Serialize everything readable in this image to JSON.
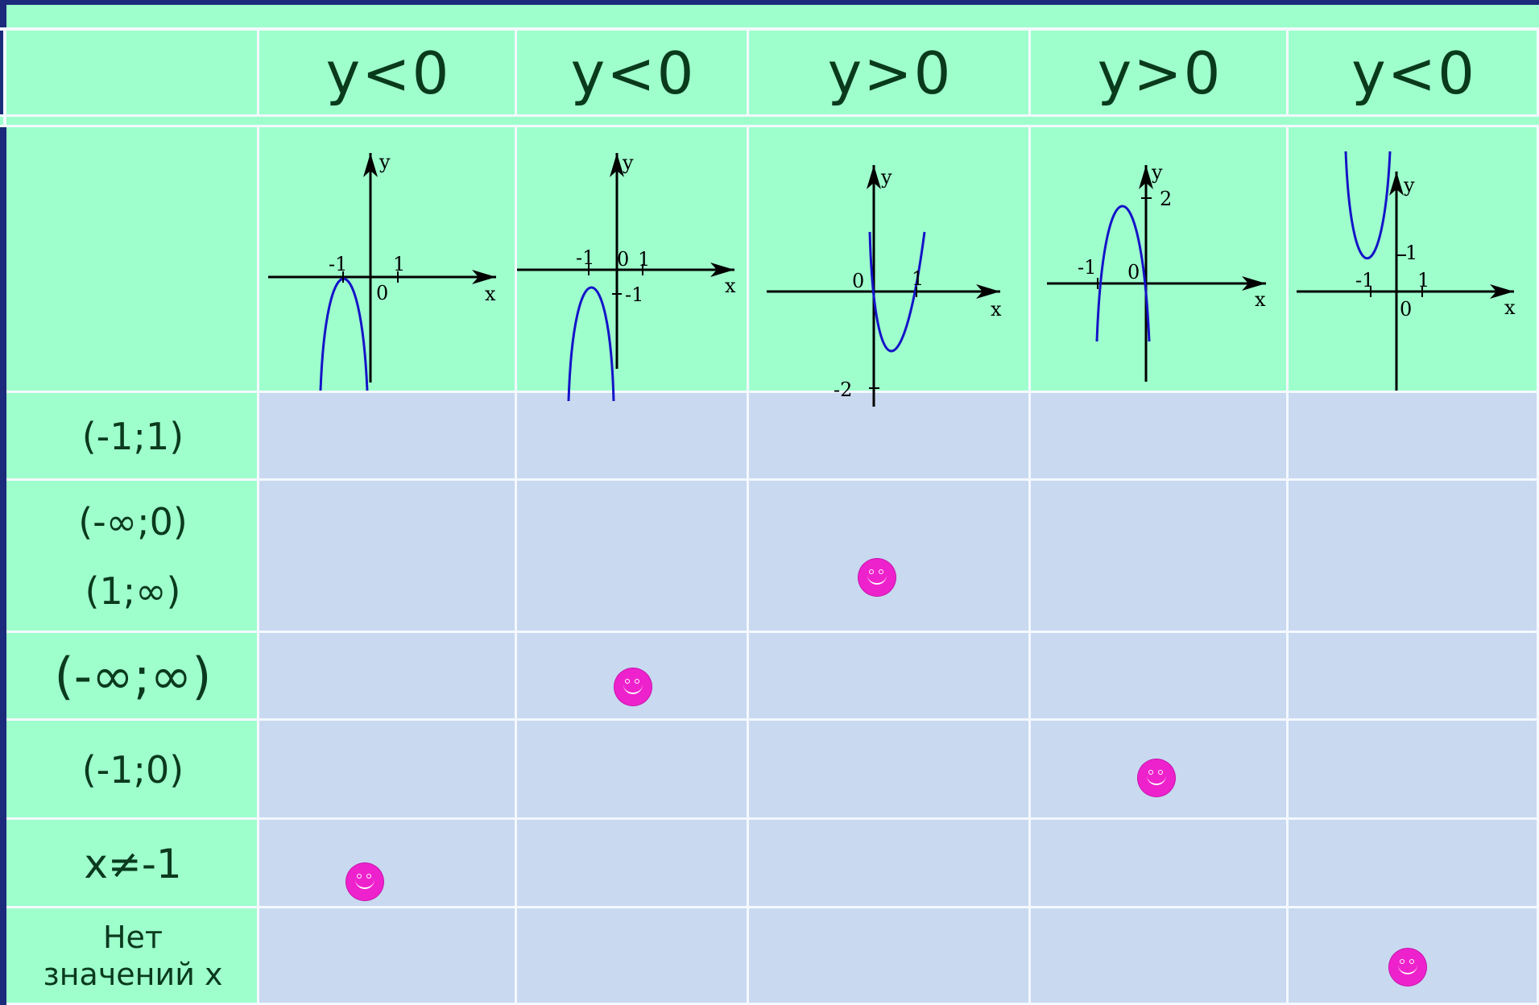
{
  "headers": [
    "y<0",
    "y<0",
    "y>0",
    "y>0",
    "y<0"
  ],
  "row_labels": [
    [
      "(-1;1)"
    ],
    [
      "(-∞;0)",
      "(1;∞)"
    ],
    [
      "(-∞;∞)"
    ],
    [
      "(-1;0)"
    ],
    [
      "x≠-1"
    ],
    [
      "Нет",
      "значений x"
    ]
  ],
  "graphs": [
    {
      "type": "parabola",
      "labels": [
        "y",
        "x",
        "-1",
        "1",
        "0"
      ]
    },
    {
      "type": "parabola",
      "labels": [
        "y",
        "x",
        "-1",
        "0",
        "1",
        "-1"
      ]
    },
    {
      "type": "parabola",
      "labels": [
        "y",
        "x",
        "0",
        "1",
        "-2"
      ]
    },
    {
      "type": "parabola",
      "labels": [
        "y",
        "x",
        "2",
        "-1",
        "0"
      ]
    },
    {
      "type": "parabola",
      "labels": [
        "y",
        "x",
        "1",
        "-1",
        "1",
        "0"
      ]
    }
  ],
  "marks": [
    {
      "row": 4,
      "col": 0
    },
    {
      "row": 2,
      "col": 1
    },
    {
      "row": 1,
      "col": 2
    },
    {
      "row": 3,
      "col": 3
    },
    {
      "row": 5,
      "col": 4
    }
  ],
  "colors": {
    "green": "#9effcc",
    "blue": "#c8d9f0",
    "line": "#f4f8ff",
    "frame": "#1b2a7a",
    "curve": "#1414c8",
    "smiley": "#ee22cc"
  }
}
